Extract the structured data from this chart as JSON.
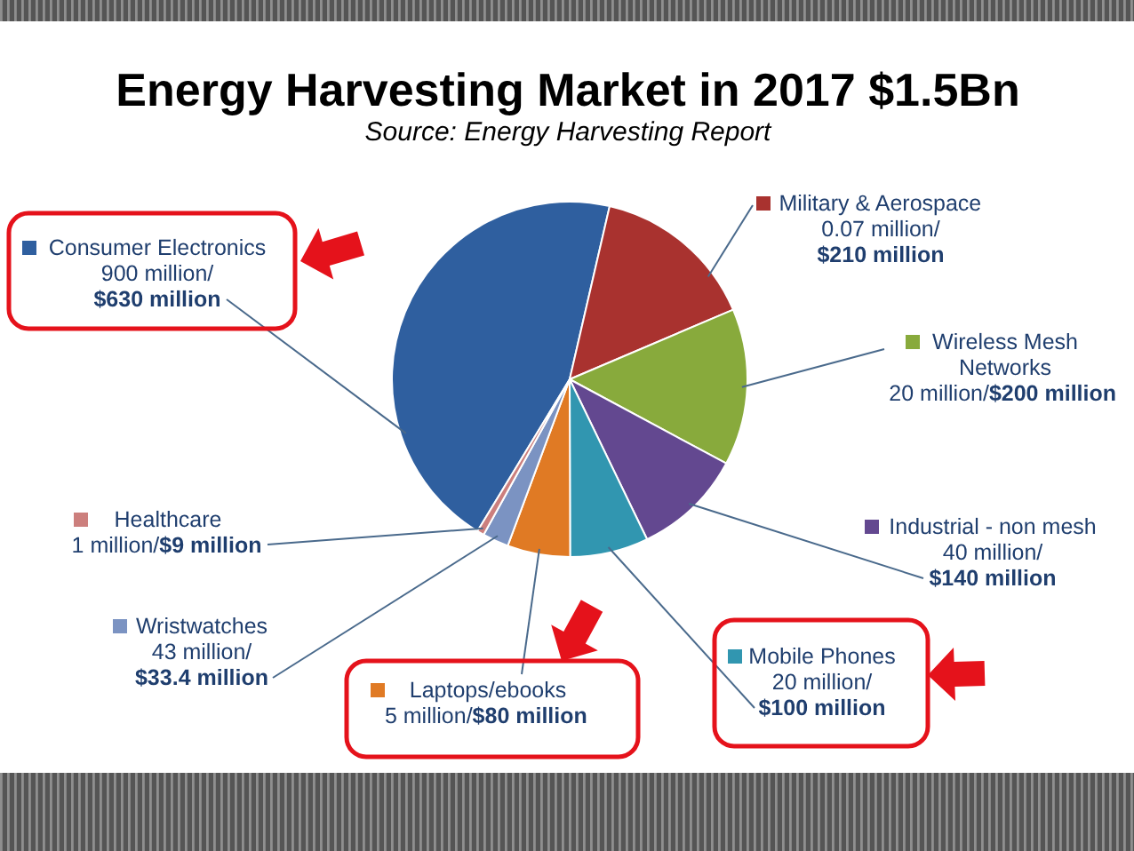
{
  "chart_data": {
    "type": "pie",
    "title": "Energy Harvesting Market in 2017 $1.5Bn",
    "annotations": [
      "Source: Energy Harvesting Report",
      {
        "text": "900 million/",
        "x": "Consumer Electronics"
      },
      {
        "text": "0.07 million/",
        "x": "Military & Aerospace"
      },
      {
        "text": "20 million/",
        "x": "Wireless Mesh Networks"
      },
      {
        "text": "40 million/",
        "x": "Industrial - non mesh"
      },
      {
        "text": "20 million/",
        "x": "Mobile Phones"
      },
      {
        "text": "5 million/",
        "x": "Laptops/ebooks"
      },
      {
        "text": "43 million/",
        "x": "Wristwatches"
      },
      {
        "text": "1 million/",
        "x": "Healthcare"
      }
    ],
    "categories": [
      "Consumer Electronics",
      "Military & Aerospace",
      "Wireless Mesh Networks",
      "Industrial - non mesh",
      "Mobile Phones",
      "Laptops/ebooks",
      "Wristwatches",
      "Healthcare"
    ],
    "values": [
      630,
      210,
      200,
      140,
      100,
      80,
      33.4,
      9
    ],
    "colors": [
      "#2f5f9f",
      "#a9322f",
      "#88aa3c",
      "#634890",
      "#3196b0",
      "#e07a24",
      "#7b93c2",
      "#cc7f7d"
    ],
    "value_labels": [
      "$630 million",
      "$210 million",
      "$200 million",
      "$140 million",
      "$100 million",
      "$80 million",
      "$33.4 million",
      "$9 million"
    ],
    "legend": "right"
  }
}
